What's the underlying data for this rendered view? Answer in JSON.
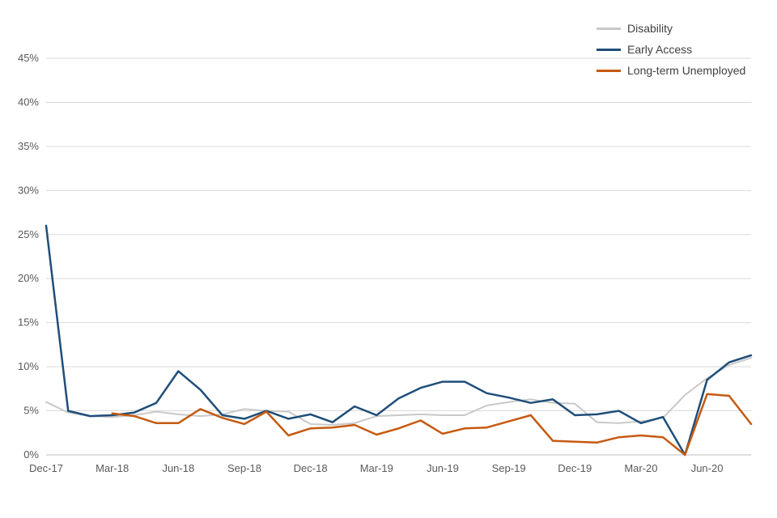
{
  "chart_data": {
    "type": "line",
    "title": "",
    "xlabel": "",
    "ylabel": "",
    "ylim": [
      0,
      45
    ],
    "grid": true,
    "legend_position": "top-right",
    "y_tick_labels": [
      "0%",
      "5%",
      "10%",
      "15%",
      "20%",
      "25%",
      "30%",
      "35%",
      "40%",
      "45%"
    ],
    "x_tick_labels": [
      "Dec-17",
      "Mar-18",
      "Jun-18",
      "Sep-18",
      "Dec-18",
      "Mar-19",
      "Jun-19",
      "Sep-19",
      "Dec-19",
      "Mar-20",
      "Jun-20"
    ],
    "x_tick_every": 3,
    "categories": [
      "Dec-17",
      "Jan-18",
      "Feb-18",
      "Mar-18",
      "Apr-18",
      "May-18",
      "Jun-18",
      "Jul-18",
      "Aug-18",
      "Sep-18",
      "Oct-18",
      "Nov-18",
      "Dec-18",
      "Jan-19",
      "Feb-19",
      "Mar-19",
      "Apr-19",
      "May-19",
      "Jun-19",
      "Jul-19",
      "Aug-19",
      "Sep-19",
      "Oct-19",
      "Nov-19",
      "Dec-19",
      "Jan-20",
      "Feb-20",
      "Mar-20",
      "Apr-20",
      "May-20",
      "Jun-20",
      "Jul-20",
      "Aug-20"
    ],
    "series": [
      {
        "name": "Disability",
        "color": "#c9c9c9",
        "values": [
          6.0,
          4.8,
          4.4,
          4.3,
          4.5,
          4.9,
          4.6,
          4.4,
          4.6,
          5.2,
          5.0,
          4.9,
          3.5,
          3.4,
          3.6,
          4.4,
          4.5,
          4.6,
          4.5,
          4.5,
          5.6,
          6.0,
          6.3,
          5.9,
          5.8,
          3.7,
          3.6,
          3.8,
          4.2,
          6.8,
          8.7,
          10.2,
          11.0
        ]
      },
      {
        "name": "Early Access",
        "color": "#1f4e79",
        "values": [
          26.0,
          5.0,
          4.4,
          4.5,
          4.8,
          5.9,
          9.5,
          7.4,
          4.5,
          4.1,
          5.0,
          4.1,
          4.6,
          3.7,
          5.5,
          4.5,
          6.4,
          7.6,
          8.3,
          8.3,
          7.0,
          6.5,
          5.9,
          6.3,
          4.5,
          4.6,
          5.0,
          3.6,
          4.3,
          0.0,
          8.5,
          10.5,
          11.3
        ]
      },
      {
        "name": "Long-term Unemployed",
        "color": "#c55a11",
        "values": [
          null,
          null,
          null,
          4.7,
          4.4,
          3.6,
          3.6,
          5.2,
          4.2,
          3.5,
          4.9,
          2.2,
          3.0,
          3.1,
          3.4,
          2.3,
          3.0,
          3.9,
          2.4,
          3.0,
          3.1,
          3.8,
          4.5,
          1.6,
          1.5,
          1.4,
          2.0,
          2.2,
          2.0,
          0.0,
          6.9,
          6.7,
          3.5
        ]
      }
    ],
    "colors": {
      "gridline": "#d9d9d9",
      "axis_line": "#bfbfbf",
      "axis_text": "#595959",
      "legend_text": "#404040"
    }
  }
}
